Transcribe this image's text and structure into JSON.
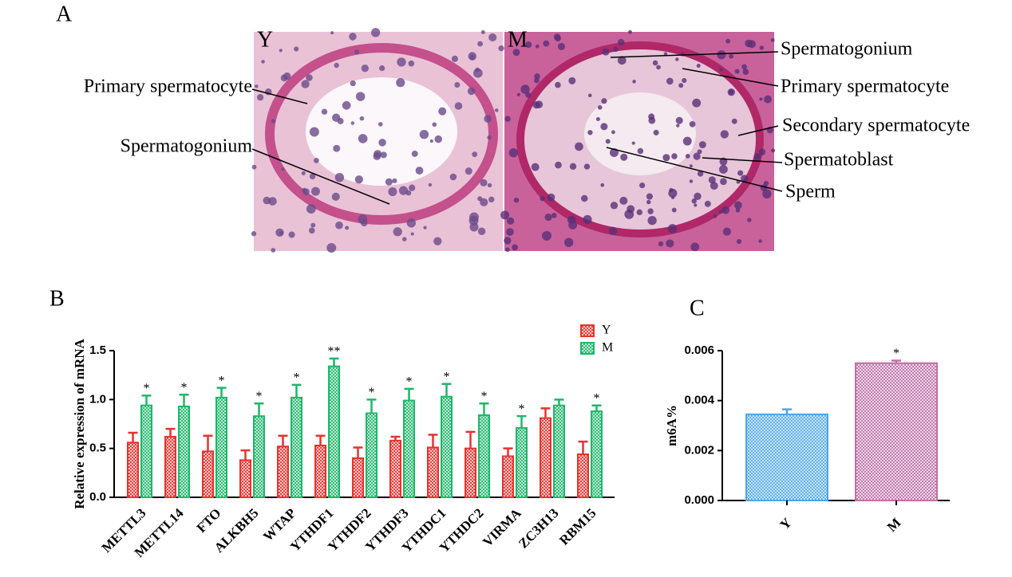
{
  "panel_labels": [
    "A",
    "B",
    "C"
  ],
  "histology": {
    "left_label": "Y",
    "right_label": "M",
    "left_annotations": [
      "Primary spermatocyte",
      "Spermatogonium"
    ],
    "right_annotations": [
      "Spermatogonium",
      "Primary spermatocyte",
      "Secondary spermatocyte",
      "Spermatoblast",
      "Sperm"
    ]
  },
  "chart_data": [
    {
      "type": "bar",
      "ylabel": "Relative expression of mRNA",
      "categories": [
        "METTL3",
        "METTL14",
        "FTO",
        "ALKBH5",
        "WTAP",
        "YTHDF1",
        "YTHDF2",
        "YTHDF3",
        "YTHDC1",
        "YTHDC2",
        "VIRMA",
        "ZC3H13",
        "RBM15"
      ],
      "series": [
        {
          "name": "Y",
          "color": "#e8322e",
          "values": [
            0.56,
            0.62,
            0.47,
            0.38,
            0.52,
            0.53,
            0.4,
            0.58,
            0.51,
            0.5,
            0.42,
            0.81,
            0.44
          ],
          "errors": [
            0.1,
            0.08,
            0.16,
            0.1,
            0.11,
            0.1,
            0.11,
            0.04,
            0.13,
            0.17,
            0.08,
            0.1,
            0.13
          ],
          "sig_labels": [
            null,
            null,
            null,
            null,
            null,
            null,
            null,
            null,
            null,
            null,
            null,
            null,
            null
          ]
        },
        {
          "name": "M",
          "color": "#1db86a",
          "values": [
            0.94,
            0.93,
            1.02,
            0.83,
            1.02,
            1.34,
            0.86,
            0.99,
            1.03,
            0.84,
            0.71,
            0.94,
            0.88
          ],
          "errors": [
            0.1,
            0.12,
            0.1,
            0.13,
            0.13,
            0.08,
            0.14,
            0.12,
            0.13,
            0.12,
            0.12,
            0.06,
            0.06
          ],
          "sig_labels": [
            "*",
            "*",
            "*",
            "*",
            "*",
            "**",
            "*",
            "*",
            "*",
            "*",
            "*",
            null,
            "*"
          ]
        }
      ],
      "ylim": [
        0,
        1.5
      ],
      "yticks": [
        {
          "value": 0,
          "label": "0.0"
        },
        0.5,
        {
          "value": 1,
          "label": "1.0"
        },
        1.5
      ],
      "legend": "top-right"
    },
    {
      "type": "bar",
      "ylabel": "m6A%",
      "categories": [
        "Y",
        "M"
      ],
      "values": [
        0.00345,
        0.0055
      ],
      "errors": [
        0.0002,
        0.0001
      ],
      "colors": [
        "#4da6e8",
        "#c070a8"
      ],
      "sig_labels": [
        null,
        "*"
      ],
      "ylim": [
        0,
        0.006
      ],
      "yticks": [
        {
          "value": 0,
          "label": "0.000"
        },
        {
          "value": 0.002,
          "label": "0.002"
        },
        {
          "value": 0.004,
          "label": "0.004"
        },
        {
          "value": 0.006,
          "label": "0.006"
        }
      ]
    }
  ]
}
